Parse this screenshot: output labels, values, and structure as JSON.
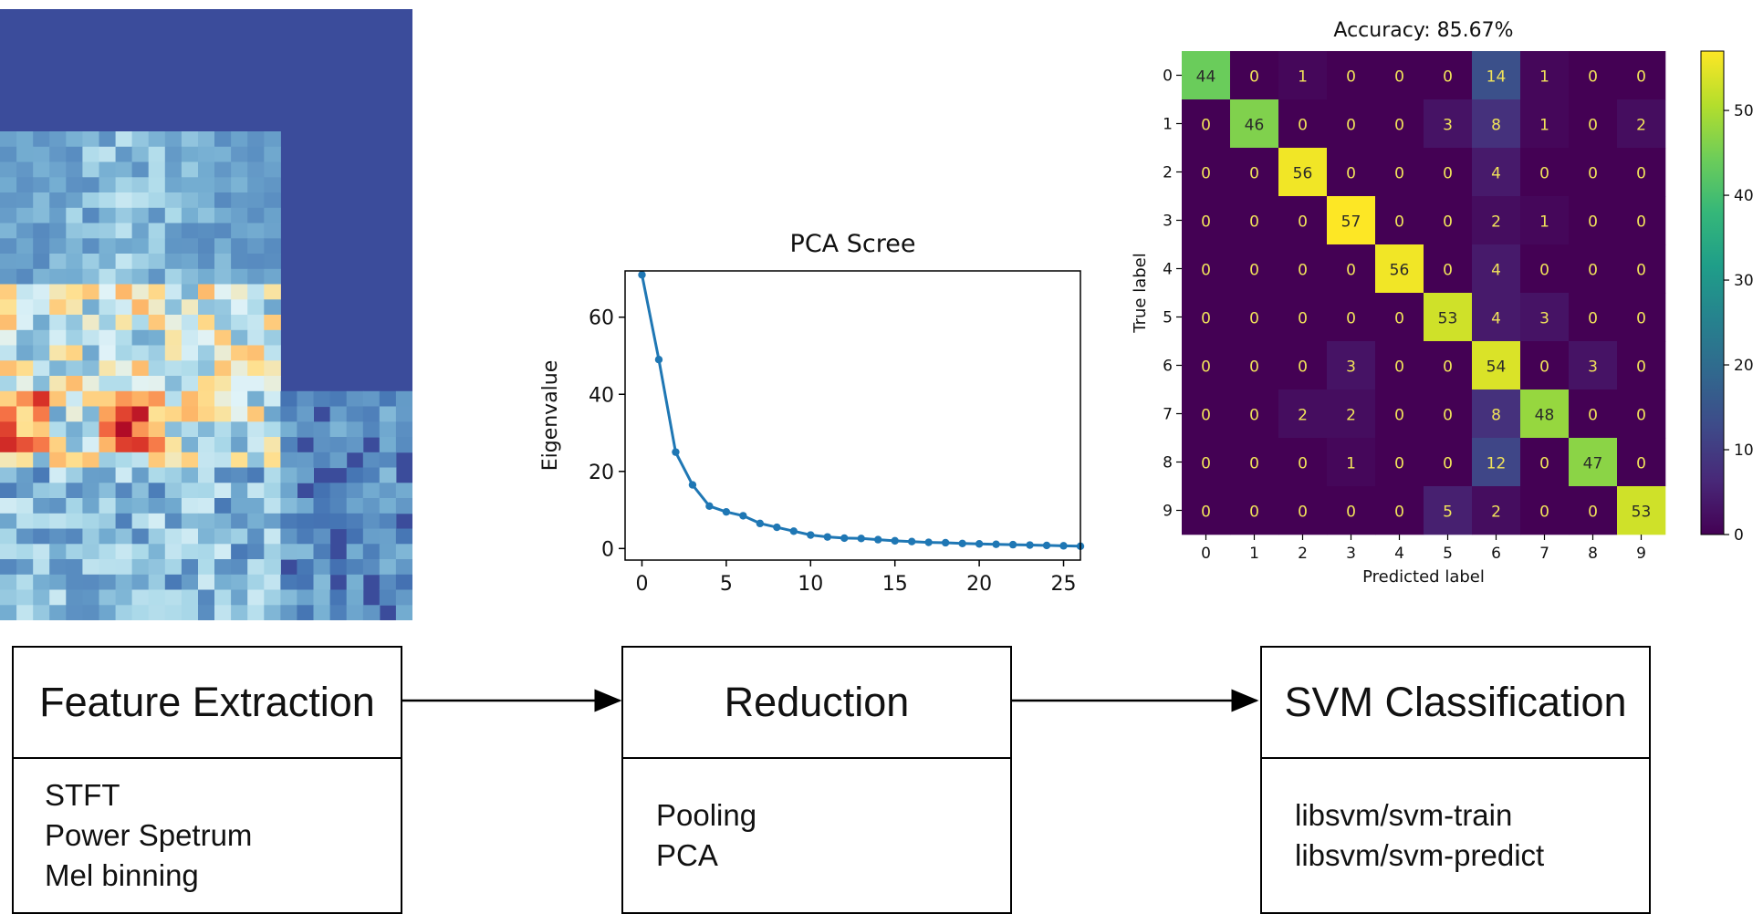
{
  "pipeline": {
    "stages": [
      {
        "title": "Feature Extraction",
        "items": [
          "STFT",
          "Power Spetrum",
          "Mel binning"
        ]
      },
      {
        "title": "Reduction",
        "items": [
          "Pooling",
          "PCA"
        ]
      },
      {
        "title": "SVM Classification",
        "items": [
          "libsvm/svm-train",
          "libsvm/svm-predict"
        ]
      }
    ]
  },
  "spectrogram": {
    "colormap": "RdYlBu_r",
    "background": "#3b4c9b"
  },
  "chart_data": [
    {
      "type": "line",
      "title": "PCA Scree",
      "xlabel": "",
      "ylabel": "Eigenvalue",
      "xlim": [
        -1,
        26
      ],
      "ylim": [
        -3,
        72
      ],
      "xticks": [
        0,
        5,
        10,
        15,
        20,
        25
      ],
      "yticks": [
        0,
        20,
        40,
        60
      ],
      "color": "#1f77b4",
      "x": [
        0,
        1,
        2,
        3,
        4,
        5,
        6,
        7,
        8,
        9,
        10,
        11,
        12,
        13,
        14,
        15,
        16,
        17,
        18,
        19,
        20,
        21,
        22,
        23,
        24,
        25,
        26
      ],
      "y": [
        71,
        49,
        25,
        16.5,
        11,
        9.5,
        8.5,
        6.5,
        5.5,
        4.5,
        3.5,
        3,
        2.7,
        2.6,
        2.3,
        2,
        1.8,
        1.6,
        1.5,
        1.3,
        1.2,
        1.1,
        1.0,
        0.9,
        0.8,
        0.7,
        0.6
      ]
    },
    {
      "type": "heatmap",
      "title": "Accuracy: 85.67%",
      "xlabel": "Predicted label",
      "ylabel": "True label",
      "labels": [
        "0",
        "1",
        "2",
        "3",
        "4",
        "5",
        "6",
        "7",
        "8",
        "9"
      ],
      "colorbar_ticks": [
        0,
        10,
        20,
        30,
        40,
        50
      ],
      "vmax": 57,
      "colormap": "viridis",
      "matrix": [
        [
          44,
          0,
          1,
          0,
          0,
          0,
          14,
          1,
          0,
          0
        ],
        [
          0,
          46,
          0,
          0,
          0,
          3,
          8,
          1,
          0,
          2
        ],
        [
          0,
          0,
          56,
          0,
          0,
          0,
          4,
          0,
          0,
          0
        ],
        [
          0,
          0,
          0,
          57,
          0,
          0,
          2,
          1,
          0,
          0
        ],
        [
          0,
          0,
          0,
          0,
          56,
          0,
          4,
          0,
          0,
          0
        ],
        [
          0,
          0,
          0,
          0,
          0,
          53,
          4,
          3,
          0,
          0
        ],
        [
          0,
          0,
          0,
          3,
          0,
          0,
          54,
          0,
          3,
          0
        ],
        [
          0,
          0,
          2,
          2,
          0,
          0,
          8,
          48,
          0,
          0
        ],
        [
          0,
          0,
          0,
          1,
          0,
          0,
          12,
          0,
          47,
          0
        ],
        [
          0,
          0,
          0,
          0,
          0,
          5,
          2,
          0,
          0,
          53
        ]
      ]
    }
  ]
}
